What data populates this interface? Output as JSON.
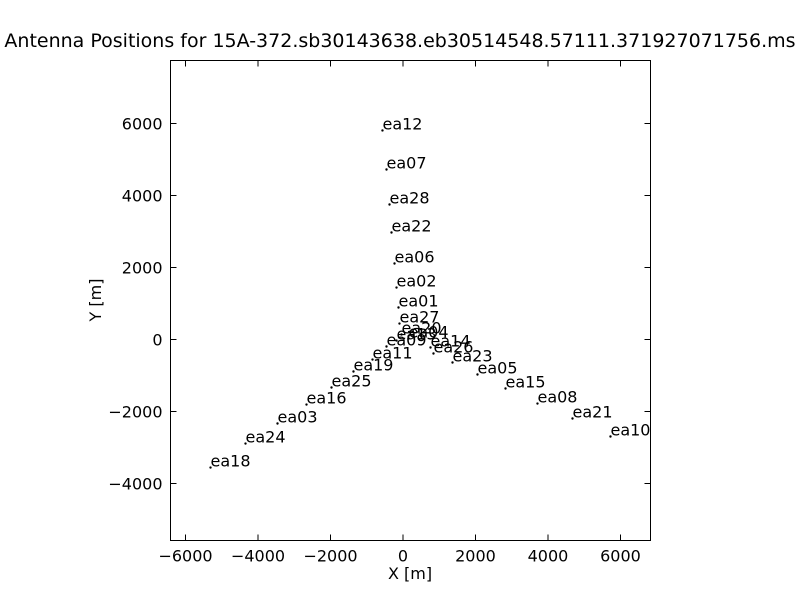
{
  "chart_data": {
    "type": "scatter",
    "title": "Antenna Positions for 15A-372.sb30143638.eb30514548.57111.371927071756.ms",
    "x_label": "X [m]",
    "y_label": "Y [m]",
    "xlim": [
      -6414,
      6828
    ],
    "ylim": [
      -5583,
      7750
    ],
    "xticks": [
      {
        "value": -6000,
        "label": "−6000"
      },
      {
        "value": -4000,
        "label": "−4000"
      },
      {
        "value": -2000,
        "label": "−2000"
      },
      0,
      2000,
      4000,
      6000
    ],
    "yticks": [
      {
        "value": -4000,
        "label": "−4000"
      },
      {
        "value": -2000,
        "label": "−2000"
      },
      0,
      2000,
      4000,
      6000
    ],
    "color": "#000000",
    "series": [
      {
        "name": "antennas",
        "labels": [
          "ea12",
          "ea07",
          "ea28",
          "ea22",
          "ea06",
          "ea02",
          "ea01",
          "ea27",
          "ea20",
          "ea09",
          "ea13",
          "ea04",
          "ea14",
          "ea26",
          "ea23",
          "ea05",
          "ea15",
          "ea08",
          "ea21",
          "ea10",
          "ea11",
          "ea19",
          "ea25",
          "ea16",
          "ea03",
          "ea24",
          "ea18"
        ],
        "x": [
          -566,
          -455,
          -372,
          -317,
          -234,
          -179,
          -124,
          -97,
          -41,
          -455,
          -179,
          152,
          759,
          841,
          1366,
          2055,
          2828,
          3710,
          4676,
          5724,
          -841,
          -1366,
          -1972,
          -2662,
          -3462,
          -4345,
          -5310
        ],
        "values": [
          5806,
          4722,
          3750,
          2972,
          2111,
          1444,
          889,
          444,
          139,
          -194,
          -28,
          28,
          -222,
          -389,
          -639,
          -972,
          -1361,
          -1778,
          -2194,
          -2694,
          -556,
          -889,
          -1333,
          -1806,
          -2333,
          -2889,
          -3556
        ]
      }
    ]
  }
}
